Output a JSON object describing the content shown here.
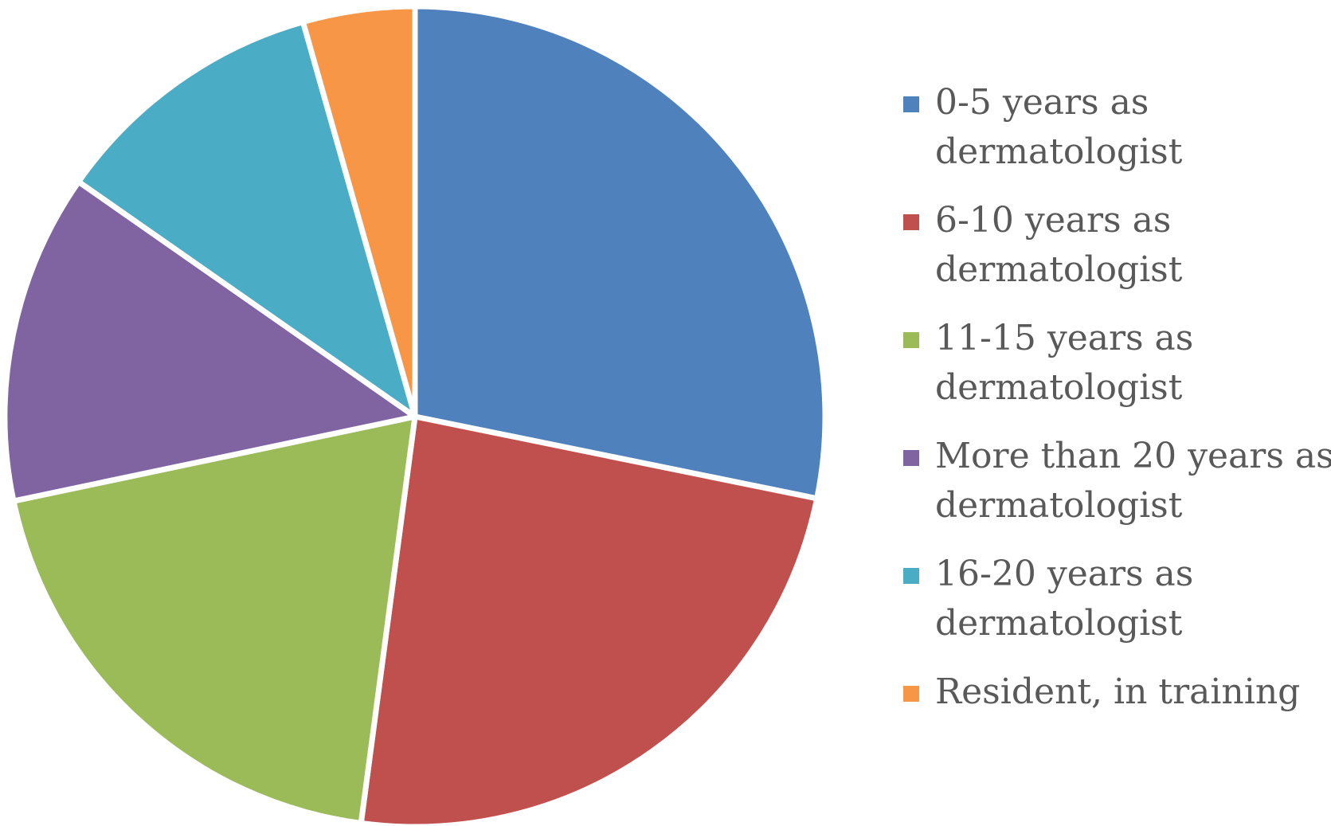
{
  "chart_data": {
    "type": "pie",
    "title": "",
    "start_angle_deg": 0,
    "direction": "clockwise",
    "legend_position": "right",
    "series": [
      {
        "categories": [
          "0-5 years as dermatologist",
          "6-10 years as dermatologist",
          "11-15 years as dermatologist",
          "More than 20 years as dermatologist",
          "16-20 years as dermatologist",
          "Resident, in training"
        ],
        "values": [
          28.2,
          23.9,
          19.6,
          13.0,
          10.9,
          4.4
        ],
        "unit": "%"
      }
    ]
  },
  "legend": {
    "items": [
      {
        "line1": "0-5 years as",
        "line2": "dermatologist",
        "color": "#4F81BD"
      },
      {
        "line1": "6-10 years as",
        "line2": "dermatologist",
        "color": "#C0504D"
      },
      {
        "line1": "11-15 years as",
        "line2": "dermatologist",
        "color": "#9BBB59"
      },
      {
        "line1": "More than 20 years as",
        "line2": "dermatologist",
        "color": "#8064A2"
      },
      {
        "line1": "16-20 years as",
        "line2": "dermatologist",
        "color": "#4BACC6"
      },
      {
        "line1": "Resident, in training",
        "line2": "",
        "color": "#F79646"
      }
    ]
  }
}
